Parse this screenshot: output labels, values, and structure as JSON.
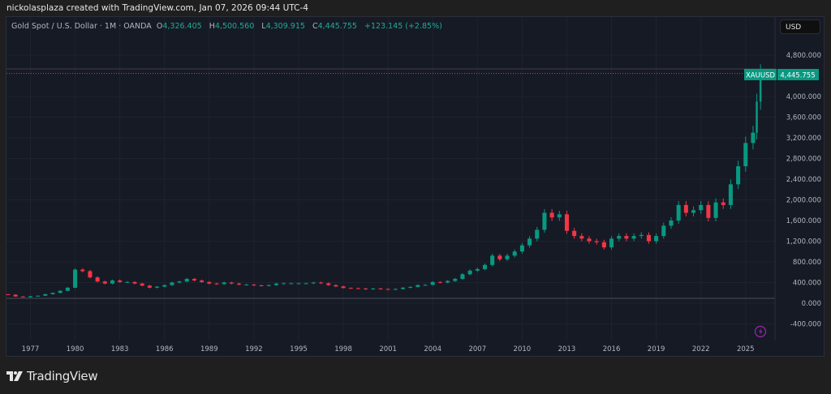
{
  "credit": "nickolasplaza created with TradingView.com, Jan 07, 2026 09:44 UTC-4",
  "legend": {
    "symbol": "Gold Spot / U.S. Dollar · 1M · OANDA",
    "open_label": "O",
    "open": "4,326.405",
    "high_label": "H",
    "high": "4,500.560",
    "low_label": "L",
    "low": "4,309.915",
    "close_label": "C",
    "close": "4,445.755",
    "change": "+123.145 (+2.85%)"
  },
  "currency": "USD",
  "price_tag": {
    "ticker": "XAUUSD",
    "price": "4,445.755"
  },
  "brand": "TradingView",
  "colors": {
    "up": "#089981",
    "down": "#f23645",
    "accent": "#22ab94",
    "alert_icon": "#9c27b0"
  },
  "icons": [
    "lightning-alert-icon",
    "tradingview-logo-icon"
  ],
  "chart_data": {
    "type": "candlestick",
    "interval": "1M (shown resampled semi-annually)",
    "y_ticks": [
      "-400.000",
      "0.000",
      "400.000",
      "800.000",
      "1,200.000",
      "1,600.000",
      "2,000.000",
      "2,400.000",
      "2,800.000",
      "3,200.000",
      "3,600.000",
      "4,000.000",
      "4,800.000"
    ],
    "y_tick_values": [
      -400,
      0,
      400,
      800,
      1200,
      1600,
      2000,
      2400,
      2800,
      3200,
      3600,
      4000,
      4800
    ],
    "x_ticks": [
      "1977",
      "1980",
      "1983",
      "1986",
      "1989",
      "1992",
      "1995",
      "1998",
      "2001",
      "2004",
      "2007",
      "2010",
      "2013",
      "2016",
      "2019",
      "2022",
      "2025"
    ],
    "ylim": [
      -600,
      5000
    ],
    "last_price": 4445.755,
    "x": [
      1975.5,
      1976,
      1976.5,
      1977,
      1977.5,
      1978,
      1978.5,
      1979,
      1979.5,
      1980,
      1980.5,
      1981,
      1981.5,
      1982,
      1982.5,
      1983,
      1983.5,
      1984,
      1984.5,
      1985,
      1985.5,
      1986,
      1986.5,
      1987,
      1987.5,
      1988,
      1988.5,
      1989,
      1989.5,
      1990,
      1990.5,
      1991,
      1991.5,
      1992,
      1992.5,
      1993,
      1993.5,
      1994,
      1994.5,
      1995,
      1995.5,
      1996,
      1996.5,
      1997,
      1997.5,
      1998,
      1998.5,
      1999,
      1999.5,
      2000,
      2000.5,
      2001,
      2001.5,
      2002,
      2002.5,
      2003,
      2003.5,
      2004,
      2004.5,
      2005,
      2005.5,
      2006,
      2006.5,
      2007,
      2007.5,
      2008,
      2008.5,
      2009,
      2009.5,
      2010,
      2010.5,
      2011,
      2011.5,
      2012,
      2012.5,
      2013,
      2013.5,
      2014,
      2014.5,
      2015,
      2015.5,
      2016,
      2016.5,
      2017,
      2017.5,
      2018,
      2018.5,
      2019,
      2019.5,
      2020,
      2020.5,
      2021,
      2021.5,
      2022,
      2022.5,
      2023,
      2023.5,
      2024,
      2024.5,
      2025,
      2025.5,
      2025.75,
      2026
    ],
    "close": [
      165,
      130,
      115,
      135,
      145,
      175,
      200,
      240,
      300,
      650,
      620,
      500,
      420,
      380,
      440,
      410,
      410,
      380,
      340,
      300,
      320,
      350,
      400,
      420,
      470,
      440,
      410,
      380,
      370,
      400,
      380,
      360,
      360,
      345,
      340,
      350,
      380,
      385,
      385,
      385,
      385,
      400,
      385,
      350,
      325,
      295,
      290,
      285,
      270,
      285,
      275,
      265,
      275,
      300,
      315,
      350,
      355,
      410,
      400,
      430,
      470,
      560,
      630,
      660,
      740,
      920,
      850,
      920,
      1000,
      1120,
      1250,
      1420,
      1750,
      1660,
      1720,
      1400,
      1300,
      1250,
      1200,
      1180,
      1080,
      1250,
      1300,
      1250,
      1300,
      1320,
      1200,
      1300,
      1500,
      1600,
      1900,
      1750,
      1800,
      1900,
      1650,
      1950,
      1900,
      2300,
      2650,
      3100,
      3300,
      3900,
      4445.755
    ]
  }
}
